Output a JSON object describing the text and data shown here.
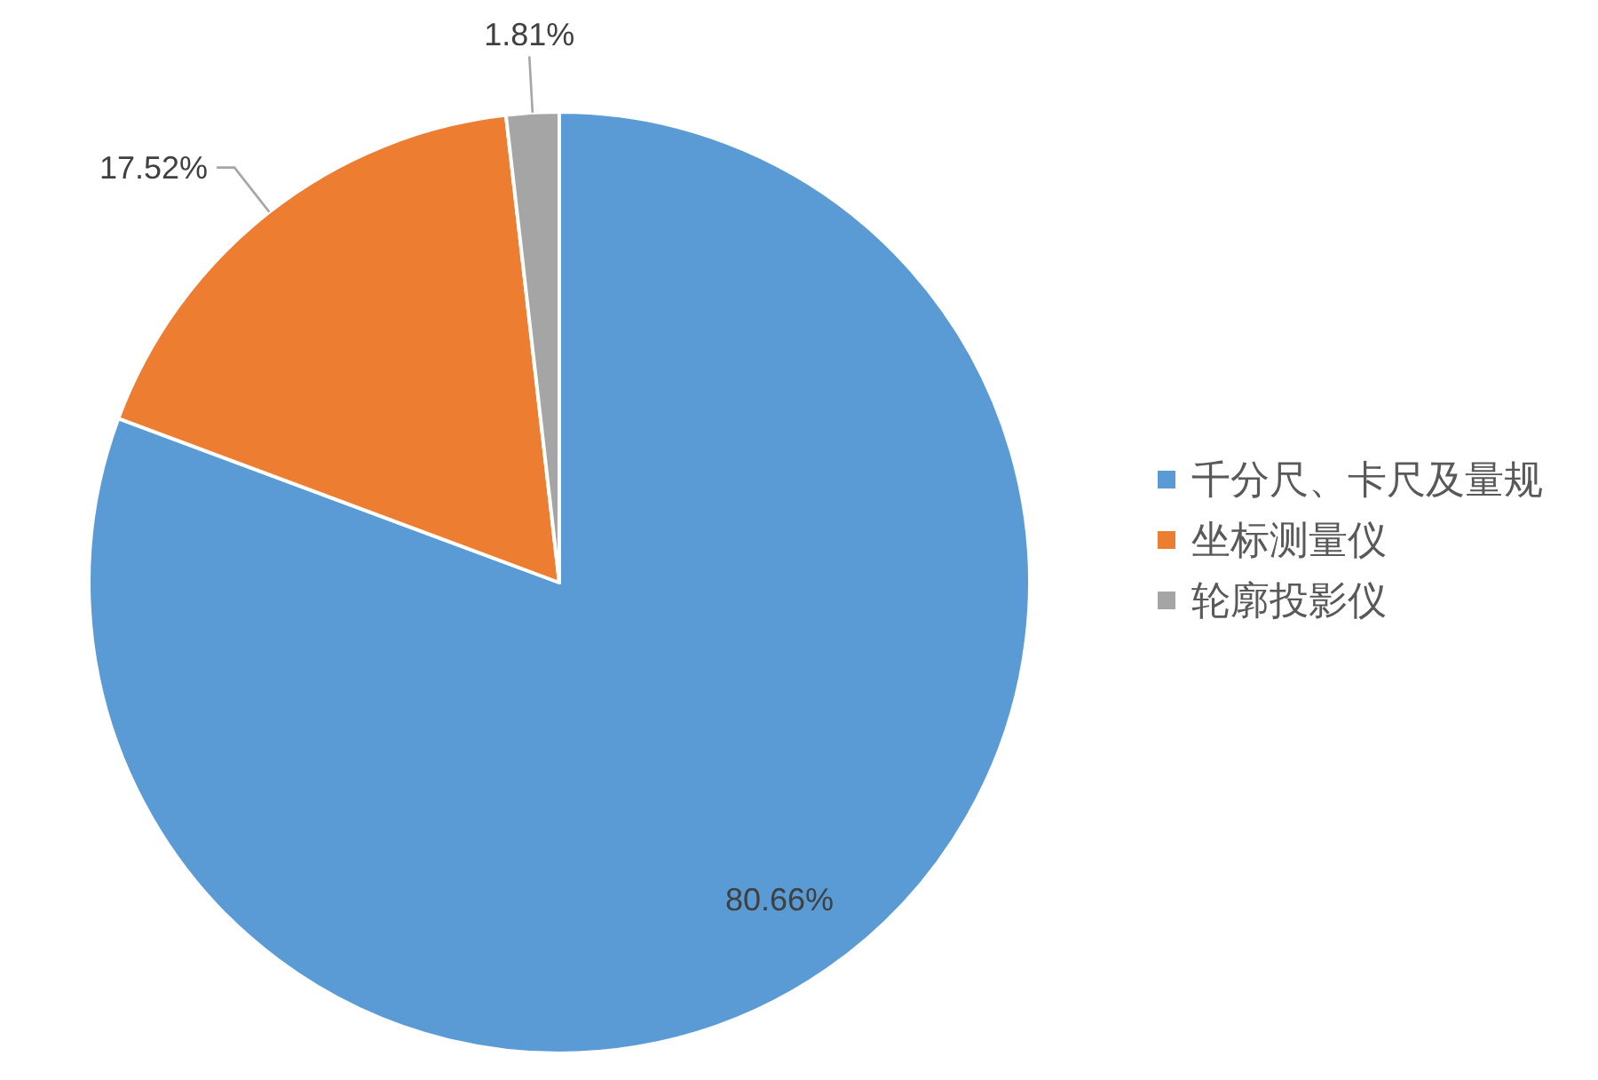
{
  "chart_data": {
    "type": "pie",
    "categories": [
      "千分尺、卡尺及量规",
      "坐标测量仪",
      "轮廓投影仪"
    ],
    "values": [
      80.66,
      17.52,
      1.81
    ],
    "colors": [
      "#5b9bd5",
      "#ed7d31",
      "#a5a5a5"
    ],
    "value_labels": [
      "80.66%",
      "17.52%",
      "1.81%"
    ],
    "legend": "right"
  }
}
